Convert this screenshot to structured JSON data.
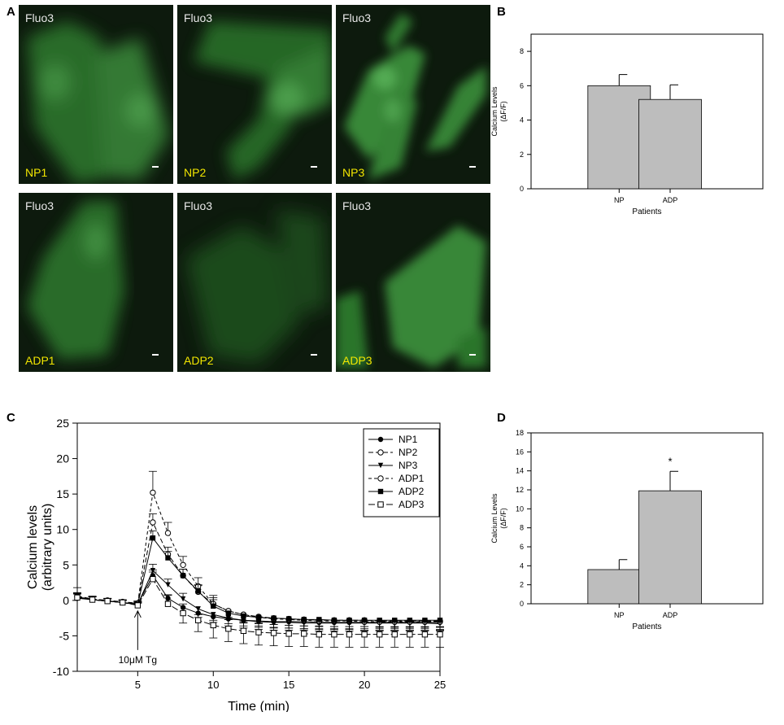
{
  "panels": {
    "A": "A",
    "B": "B",
    "C": "C",
    "D": "D"
  },
  "micrographs": [
    {
      "stain": "Fluo3",
      "label": "NP1"
    },
    {
      "stain": "Fluo3",
      "label": "NP2"
    },
    {
      "stain": "Fluo3",
      "label": "NP3"
    },
    {
      "stain": "Fluo3",
      "label": "ADP1"
    },
    {
      "stain": "Fluo3",
      "label": "ADP2"
    },
    {
      "stain": "Fluo3",
      "label": "ADP3"
    }
  ],
  "colors": {
    "fluorescence": "#3fa83f",
    "label_yellow": "#f2e600",
    "bar_fill": "#bdbdbd"
  },
  "chart_data": [
    {
      "id": "B",
      "type": "bar",
      "categories": [
        "NP",
        "ADP"
      ],
      "values": [
        6.0,
        5.2
      ],
      "errors": [
        0.65,
        0.85
      ],
      "xlabel": "Patients",
      "ylabel": "Calcium Levels",
      "ylabel2": "(ΔF/F)",
      "ylim": [
        0,
        9
      ],
      "yticks": [
        0,
        2,
        4,
        6,
        8
      ],
      "grid": false
    },
    {
      "id": "C",
      "type": "line",
      "xlabel": "Time (min)",
      "ylabel": "Calcium levels",
      "ylabel2": "(arbitrary units)",
      "xlim": [
        1,
        25
      ],
      "ylim": [
        -10,
        25
      ],
      "xticks": [
        5,
        10,
        15,
        20,
        25
      ],
      "yticks": [
        -10,
        -5,
        0,
        5,
        10,
        15,
        20,
        25
      ],
      "legend_position": "top-right",
      "annotation": "10μM Tg",
      "annotation_x": 5,
      "x": [
        1,
        2,
        3,
        4,
        5,
        6,
        7,
        8,
        9,
        10,
        11,
        12,
        13,
        14,
        15,
        16,
        17,
        18,
        19,
        20,
        21,
        22,
        23,
        24,
        25
      ],
      "series": [
        {
          "name": "NP1",
          "marker": "circle-filled",
          "values": [
            0.3,
            0.1,
            -0.1,
            -0.3,
            -0.5,
            3.5,
            0.3,
            -1.0,
            -1.8,
            -2.3,
            -2.6,
            -2.8,
            -2.9,
            -3.0,
            -3.0,
            -3.0,
            -3.1,
            -3.1,
            -3.1,
            -3.1,
            -3.1,
            -3.1,
            -3.1,
            -3.1,
            -3.1
          ],
          "errors": [
            1.5,
            0.4,
            0.3,
            0.3,
            0.4,
            0.8,
            0.5,
            0.5,
            0.6,
            0.8,
            1.0,
            1.1,
            1.2,
            1.2,
            1.2,
            1.2,
            1.2,
            1.2,
            1.2,
            1.2,
            1.2,
            1.2,
            1.2,
            1.2,
            1.2
          ]
        },
        {
          "name": "NP2",
          "marker": "circle-open",
          "values": [
            0.6,
            0.2,
            0.0,
            -0.2,
            -0.4,
            11.0,
            6.5,
            3.5,
            1.2,
            -0.5,
            -1.5,
            -2.0,
            -2.3,
            -2.5,
            -2.6,
            -2.7,
            -2.8,
            -2.8,
            -2.8,
            -2.8,
            -2.9,
            -2.9,
            -2.9,
            -2.9,
            -2.9
          ],
          "errors": [
            0.5,
            0.4,
            0.3,
            0.3,
            0.3,
            1.2,
            1.0,
            0.9,
            0.9,
            0.9,
            0.9,
            0.9,
            0.9,
            0.9,
            0.9,
            0.9,
            0.9,
            0.9,
            0.9,
            0.9,
            0.9,
            0.9,
            0.9,
            0.9,
            0.9
          ]
        },
        {
          "name": "NP3",
          "marker": "triangle-down",
          "values": [
            0.4,
            0.1,
            -0.1,
            -0.3,
            -0.6,
            4.2,
            2.2,
            0.2,
            -1.2,
            -2.0,
            -2.5,
            -2.8,
            -3.0,
            -3.1,
            -3.1,
            -3.2,
            -3.2,
            -3.2,
            -3.2,
            -3.2,
            -3.2,
            -3.2,
            -3.2,
            -3.2,
            -3.3
          ],
          "errors": [
            0.5,
            0.4,
            0.3,
            0.3,
            0.3,
            0.9,
            0.8,
            0.8,
            0.8,
            0.8,
            0.8,
            0.8,
            0.8,
            0.8,
            0.8,
            0.8,
            0.8,
            0.8,
            0.8,
            0.8,
            0.8,
            0.8,
            0.8,
            0.8,
            0.8
          ]
        },
        {
          "name": "ADP1",
          "marker": "circle-open",
          "values": [
            0.5,
            0.1,
            -0.1,
            -0.3,
            -0.5,
            15.2,
            9.5,
            5.0,
            2.0,
            -0.5,
            -1.5,
            -2.0,
            -2.4,
            -2.6,
            -2.7,
            -2.8,
            -2.9,
            -2.9,
            -2.9,
            -3.0,
            -3.0,
            -3.0,
            -3.0,
            -3.0,
            -3.0
          ],
          "errors": [
            0.5,
            0.4,
            0.3,
            0.3,
            0.3,
            3.0,
            1.5,
            1.2,
            1.2,
            1.2,
            1.2,
            1.2,
            1.2,
            1.2,
            1.2,
            1.2,
            1.2,
            1.2,
            1.2,
            1.2,
            1.2,
            1.2,
            1.2,
            1.2,
            1.2
          ]
        },
        {
          "name": "ADP2",
          "marker": "square-filled",
          "values": [
            0.5,
            0.1,
            -0.1,
            -0.3,
            -0.6,
            8.8,
            6.0,
            3.5,
            1.3,
            -0.8,
            -1.8,
            -2.2,
            -2.4,
            -2.5,
            -2.6,
            -2.7,
            -2.7,
            -2.8,
            -2.8,
            -2.8,
            -2.8,
            -2.8,
            -2.8,
            -2.8,
            -2.8
          ],
          "errors": [
            0.5,
            0.4,
            0.3,
            0.3,
            0.3,
            1.0,
            0.9,
            0.9,
            0.9,
            0.9,
            0.9,
            0.9,
            0.9,
            0.9,
            0.9,
            0.9,
            0.9,
            0.9,
            0.9,
            0.9,
            0.9,
            0.9,
            0.9,
            0.9,
            0.9
          ]
        },
        {
          "name": "ADP3",
          "marker": "square-open",
          "values": [
            0.4,
            0.1,
            -0.1,
            -0.3,
            -0.7,
            3.0,
            -0.5,
            -1.8,
            -2.8,
            -3.5,
            -4.0,
            -4.3,
            -4.5,
            -4.6,
            -4.7,
            -4.7,
            -4.8,
            -4.8,
            -4.8,
            -4.8,
            -4.8,
            -4.8,
            -4.8,
            -4.8,
            -4.8
          ],
          "errors": [
            0.5,
            0.4,
            0.3,
            0.3,
            0.3,
            1.0,
            1.2,
            1.4,
            1.6,
            1.8,
            1.8,
            1.8,
            1.8,
            1.8,
            1.8,
            1.8,
            1.8,
            1.8,
            1.8,
            1.8,
            1.8,
            1.8,
            1.8,
            1.8,
            1.8
          ]
        }
      ]
    },
    {
      "id": "D",
      "type": "bar",
      "categories": [
        "NP",
        "ADP"
      ],
      "values": [
        3.6,
        11.9
      ],
      "errors": [
        1.05,
        2.05
      ],
      "significance": [
        "",
        "*"
      ],
      "xlabel": "Patients",
      "ylabel": "Calcium Levels",
      "ylabel2": "(ΔF/F)",
      "ylim": [
        0,
        18
      ],
      "yticks": [
        0,
        2,
        4,
        6,
        8,
        10,
        12,
        14,
        16,
        18
      ],
      "grid": false
    }
  ]
}
